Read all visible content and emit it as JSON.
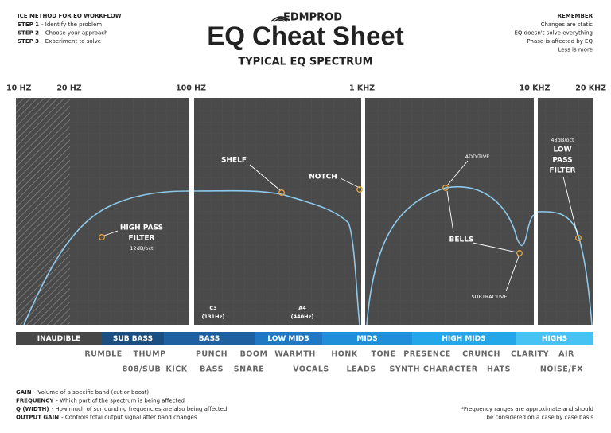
{
  "header": {
    "method_title": "ICE METHOD FOR EQ WORKFLOW",
    "steps": [
      {
        "label": "STEP 1",
        "text": "- Identify the problem"
      },
      {
        "label": "STEP 2",
        "text": "- Choose your approach"
      },
      {
        "label": "STEP 3",
        "text": "- Experiment to solve"
      }
    ],
    "logo": "EDMPROD",
    "title": "EQ Cheat Sheet",
    "subtitle": "TYPICAL EQ SPECTRUM",
    "remember_title": "REMEMBER",
    "remember": [
      "Changes are static",
      "EQ doesn't solve everything",
      "Phase is affected by EQ",
      "Less is more"
    ]
  },
  "frequencies": [
    "10 HZ",
    "20 HZ",
    "100 HZ",
    "1 KHZ",
    "10 KHZ",
    "20 KHZ"
  ],
  "annotations": {
    "high_pass": [
      "HIGH PASS",
      "FILTER"
    ],
    "high_pass_slope": "12dB/oct",
    "shelf": "SHELF",
    "notch": "NOTCH",
    "additive": "ADDITIVE",
    "bells": "BELLS",
    "subtractive": "SUBTRACTIVE",
    "low_pass_slope": "48dB/oct",
    "low_pass": [
      "LOW",
      "PASS",
      "FILTER"
    ],
    "notes": [
      {
        "name": "C3",
        "freq": "(131Hz)"
      },
      {
        "name": "A4",
        "freq": "(440Hz)"
      }
    ]
  },
  "bands": [
    "INAUDIBLE",
    "SUB BASS",
    "BASS",
    "LOW MIDS",
    "MIDS",
    "HIGH MIDS",
    "HIGHS"
  ],
  "descriptors": [
    [
      "RUMBLE",
      "THUMP",
      "PUNCH",
      "BOOM",
      "WARMTH",
      "HONK",
      "TONE",
      "PRESENCE",
      "CRUNCH",
      "CLARITY",
      "AIR"
    ],
    [
      "808/SUB",
      "KICK",
      "BASS",
      "SNARE",
      "VOCALS",
      "LEADS",
      "SYNTH CHARACTER",
      "HATS",
      "NOISE/FX"
    ]
  ],
  "definitions": [
    {
      "term": "GAIN",
      "text": "- Volume of a specific band (cut or boost)"
    },
    {
      "term": "FREQUENCY",
      "text": "- Which part of the spectrum is being affected"
    },
    {
      "term": "Q (WIDTH)",
      "text": "- How much of surrounding frequencies are also being affected"
    },
    {
      "term": "OUTPUT GAIN",
      "text": "- Controls total output signal after band changes"
    }
  ],
  "footnote": [
    "*Frequency ranges are approximate and should",
    "be considered on a case by case basis"
  ]
}
